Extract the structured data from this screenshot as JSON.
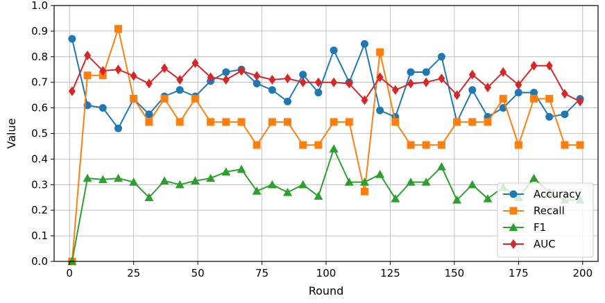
{
  "chart_data": {
    "type": "line",
    "title": "",
    "xlabel": "Round",
    "ylabel": "Value",
    "xlim": [
      -6,
      206
    ],
    "ylim": [
      0.0,
      1.0
    ],
    "xticks": [
      0,
      25,
      50,
      75,
      100,
      125,
      150,
      175,
      200
    ],
    "yticks": [
      0.0,
      0.1,
      0.2,
      0.3,
      0.4,
      0.5,
      0.6,
      0.7,
      0.8,
      0.9,
      1.0
    ],
    "grid": true,
    "legend_position": "lower-right",
    "x": [
      1,
      7,
      13,
      19,
      25,
      31,
      37,
      43,
      49,
      55,
      61,
      67,
      73,
      79,
      85,
      91,
      97,
      103,
      109,
      115,
      121,
      127,
      133,
      139,
      145,
      151,
      157,
      163,
      169,
      175,
      181,
      187,
      193,
      199
    ],
    "series": [
      {
        "name": "Accuracy",
        "color": "#1f77b4",
        "marker": "circle",
        "values": [
          0.87,
          0.61,
          0.6,
          0.52,
          0.635,
          0.575,
          0.645,
          0.67,
          0.645,
          0.705,
          0.74,
          0.75,
          0.695,
          0.67,
          0.625,
          0.73,
          0.66,
          0.825,
          0.7,
          0.85,
          0.59,
          0.565,
          0.74,
          0.74,
          0.8,
          0.545,
          0.67,
          0.565,
          0.6,
          0.66,
          0.66,
          0.565,
          0.575,
          0.635
        ]
      },
      {
        "name": "Recall",
        "color": "#ff7f0e",
        "marker": "square",
        "values": [
          0.0,
          0.727,
          0.727,
          0.909,
          0.636,
          0.545,
          0.636,
          0.545,
          0.636,
          0.545,
          0.545,
          0.545,
          0.455,
          0.545,
          0.545,
          0.455,
          0.455,
          0.545,
          0.545,
          0.273,
          0.818,
          0.545,
          0.455,
          0.455,
          0.455,
          0.545,
          0.545,
          0.545,
          0.636,
          0.455,
          0.636,
          0.636,
          0.455,
          0.455
        ]
      },
      {
        "name": "F1",
        "color": "#2ca02c",
        "marker": "triangle",
        "values": [
          0.0,
          0.325,
          0.32,
          0.325,
          0.31,
          0.25,
          0.315,
          0.3,
          0.315,
          0.325,
          0.35,
          0.36,
          0.275,
          0.3,
          0.27,
          0.3,
          0.255,
          0.44,
          0.31,
          0.31,
          0.34,
          0.245,
          0.31,
          0.31,
          0.37,
          0.24,
          0.3,
          0.245,
          0.29,
          0.25,
          0.325,
          0.27,
          0.24,
          0.24
        ]
      },
      {
        "name": "AUC",
        "color": "#d62728",
        "marker": "diamond",
        "values": [
          0.665,
          0.805,
          0.745,
          0.75,
          0.725,
          0.695,
          0.755,
          0.71,
          0.775,
          0.72,
          0.71,
          0.745,
          0.725,
          0.71,
          0.715,
          0.7,
          0.7,
          0.7,
          0.695,
          0.63,
          0.72,
          0.67,
          0.695,
          0.7,
          0.715,
          0.65,
          0.73,
          0.68,
          0.74,
          0.69,
          0.765,
          0.765,
          0.655,
          0.625
        ]
      }
    ]
  }
}
